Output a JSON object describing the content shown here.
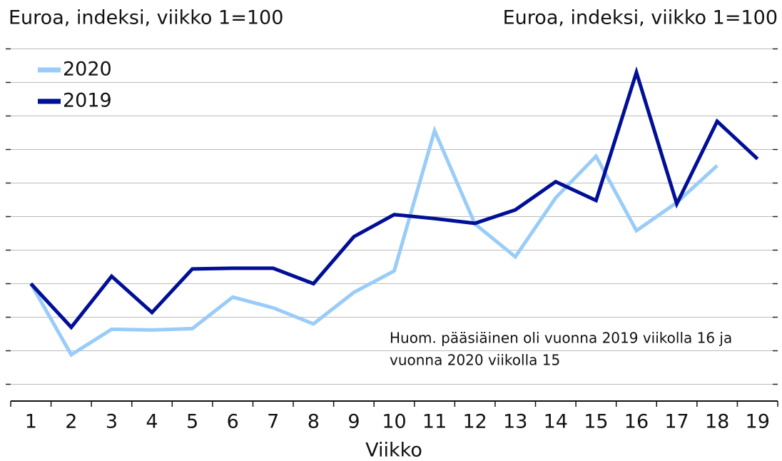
{
  "chart_data": {
    "type": "line",
    "title": "Euroa, indeksi, viikko 1=100",
    "title_right": "Euroa, indeksi, viikko 1=100",
    "x_label": "Viikko",
    "annotation": [
      "Huom. pääsiäinen oli vuonna 2019 viikolla 16 ja",
      "vuonna 2020 viikolla 15"
    ],
    "categories": [
      "1",
      "2",
      "3",
      "4",
      "5",
      "6",
      "7",
      "8",
      "9",
      "10",
      "11",
      "12",
      "13",
      "14",
      "15",
      "16",
      "17",
      "18",
      "19"
    ],
    "series": [
      {
        "name": "2020",
        "color": "#99ccf8",
        "values": [
          100,
          89.4,
          93.2,
          93.1,
          93.3,
          98.0,
          96.4,
          94.0,
          98.7,
          101.9,
          122.8,
          108.9,
          104.0,
          112.8,
          119.0,
          107.9,
          112.1,
          117.6,
          null
        ]
      },
      {
        "name": "2019",
        "color": "#000f96",
        "values": [
          100,
          93.5,
          101.1,
          95.7,
          102.2,
          102.3,
          102.3,
          100,
          107.0,
          110.3,
          109.7,
          109.0,
          111.0,
          115.2,
          112.4,
          131.5,
          111.9,
          124.2,
          118.6
        ]
      }
    ],
    "ylim": [
      82.5,
      137.5
    ],
    "yticks": [
      85,
      90,
      95,
      100,
      105,
      110,
      115,
      120,
      125,
      130,
      135
    ],
    "grid": true,
    "legend": "top-left"
  }
}
